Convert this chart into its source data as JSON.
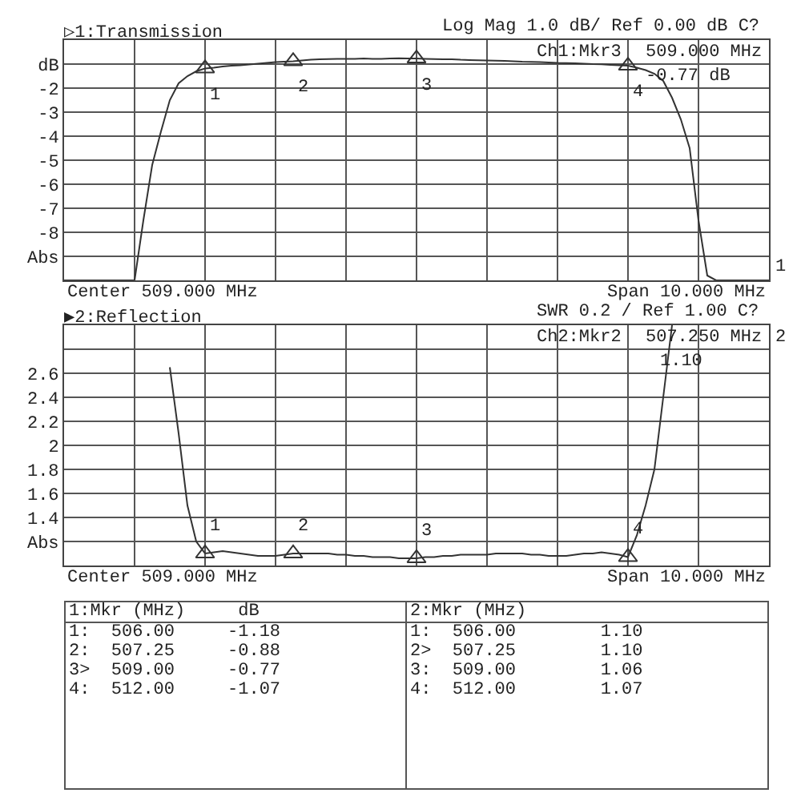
{
  "chart_data": [
    {
      "type": "line",
      "title": "▷1:Transmission",
      "subtitle": "Log Mag 1.0 dB/ Ref 0.00 dB C?",
      "categories": [
        null,
        null,
        null,
        null,
        null,
        null,
        null,
        null,
        null,
        null,
        null,
        null,
        null,
        null,
        null,
        null,
        null,
        null,
        null,
        null,
        null,
        null,
        null,
        null,
        null,
        null,
        null,
        null,
        null,
        null,
        null,
        null,
        null,
        null,
        null,
        null,
        null,
        null,
        null,
        null,
        null,
        null,
        null,
        null,
        null,
        null,
        null,
        null,
        null,
        null,
        null,
        null,
        null,
        null,
        null,
        null,
        null,
        null,
        null,
        null,
        null,
        null,
        null,
        null,
        null,
        null,
        null,
        null,
        null,
        null,
        null,
        null,
        null,
        null,
        null,
        null,
        null,
        null,
        null,
        null,
        null
      ],
      "series": [
        {
          "color": "#333333",
          "values": [
            -10,
            -10,
            -10,
            -10,
            -10,
            -10,
            -10,
            -10,
            -10,
            -7.5,
            -5.2,
            -3.8,
            -2.5,
            -1.8,
            -1.5,
            -1.3,
            -1.18,
            -1.15,
            -1.1,
            -1.07,
            -1.05,
            -1.02,
            -0.98,
            -0.95,
            -0.92,
            -0.9,
            -0.88,
            -0.85,
            -0.82,
            -0.8,
            -0.79,
            -0.78,
            -0.78,
            -0.78,
            -0.77,
            -0.78,
            -0.78,
            -0.77,
            -0.76,
            -0.77,
            -0.77,
            -0.78,
            -0.79,
            -0.8,
            -0.8,
            -0.82,
            -0.83,
            -0.84,
            -0.85,
            -0.86,
            -0.87,
            -0.88,
            -0.9,
            -0.91,
            -0.92,
            -0.93,
            -0.95,
            -0.96,
            -0.97,
            -0.98,
            -1.0,
            -1.01,
            -1.03,
            -1.05,
            -1.07,
            -1.15,
            -1.25,
            -1.4,
            -1.7,
            -2.4,
            -3.3,
            -4.5,
            -7.5,
            -9.8,
            -10,
            -10,
            -10,
            -10,
            -10,
            -10,
            -10
          ]
        },
        {
          "type": "scatter",
          "marker": "triangle",
          "color": "#333333",
          "values": [
            null,
            null,
            null,
            null,
            null,
            null,
            null,
            null,
            null,
            null,
            null,
            null,
            null,
            null,
            null,
            null,
            -1.18,
            null,
            null,
            null,
            null,
            null,
            null,
            null,
            null,
            null,
            -0.88,
            null,
            null,
            null,
            null,
            null,
            null,
            null,
            null,
            null,
            null,
            null,
            null,
            null,
            -0.77,
            null,
            null,
            null,
            null,
            null,
            null,
            null,
            null,
            null,
            null,
            null,
            null,
            null,
            null,
            null,
            null,
            null,
            null,
            null,
            null,
            null,
            null,
            null,
            -1.07,
            null,
            null,
            null,
            null,
            null,
            null,
            null,
            null,
            null,
            null,
            null,
            null,
            null,
            null,
            null,
            null
          ]
        }
      ],
      "ylim": [
        -10,
        0
      ],
      "yticks": [
        {
          "value": -10,
          "label": null
        },
        {
          "value": -9,
          "label": "Abs"
        },
        -8,
        -7,
        -6,
        -5,
        -4,
        -3,
        -2,
        {
          "value": -1,
          "label": "dB"
        },
        {
          "value": 0,
          "label": null
        }
      ],
      "grid": true,
      "marker": "none",
      "line_style": "solid",
      "annotations": [
        "Ch1:Mkr3",
        "509.000 MHz",
        "-0.77 dB",
        "Center 509.000 MHz",
        "Span 10.000 MHz",
        "1",
        "1",
        "2",
        "3",
        "4",
        "1:Mkr (MHz)     dB",
        "1:  506.00     -1.18",
        "2:  507.25     -0.88",
        "3>  509.00     -0.77",
        "4:  512.00     -1.07"
      ]
    },
    {
      "type": "line",
      "title": "▶2:Reflection",
      "subtitle": "SWR 0.2 / Ref 1.00 C?",
      "categories": [
        null,
        null,
        null,
        null,
        null,
        null,
        null,
        null,
        null,
        null,
        null,
        null,
        null,
        null,
        null,
        null,
        null,
        null,
        null,
        null,
        null,
        null,
        null,
        null,
        null,
        null,
        null,
        null,
        null,
        null,
        null,
        null,
        null,
        null,
        null,
        null,
        null,
        null,
        null,
        null,
        null,
        null,
        null,
        null,
        null,
        null,
        null,
        null,
        null,
        null,
        null,
        null,
        null,
        null,
        null,
        null,
        null,
        null,
        null,
        null,
        null,
        null,
        null,
        null,
        null,
        null,
        null,
        null,
        null,
        null,
        null,
        null,
        null,
        null,
        null,
        null,
        null,
        null,
        null,
        null,
        null
      ],
      "series": [
        {
          "color": "#333333",
          "values": [
            null,
            null,
            null,
            null,
            null,
            null,
            null,
            null,
            null,
            null,
            null,
            null,
            2.65,
            2.1,
            1.5,
            1.2,
            1.1,
            1.11,
            1.12,
            1.11,
            1.1,
            1.09,
            1.08,
            1.08,
            1.08,
            1.09,
            1.1,
            1.1,
            1.1,
            1.1,
            1.1,
            1.09,
            1.09,
            1.08,
            1.08,
            1.07,
            1.07,
            1.07,
            1.06,
            1.06,
            1.06,
            1.07,
            1.07,
            1.08,
            1.08,
            1.09,
            1.09,
            1.09,
            1.09,
            1.1,
            1.1,
            1.1,
            1.1,
            1.09,
            1.09,
            1.08,
            1.08,
            1.08,
            1.09,
            1.1,
            1.1,
            1.11,
            1.1,
            1.09,
            1.07,
            1.25,
            1.5,
            1.8,
            2.4,
            3.0,
            null,
            null,
            null,
            null,
            null,
            null,
            null,
            null,
            null,
            null,
            null
          ]
        },
        {
          "type": "scatter",
          "marker": "triangle",
          "color": "#333333",
          "values": [
            null,
            null,
            null,
            null,
            null,
            null,
            null,
            null,
            null,
            null,
            null,
            null,
            null,
            null,
            null,
            null,
            1.1,
            null,
            null,
            null,
            null,
            null,
            null,
            null,
            null,
            null,
            1.1,
            null,
            null,
            null,
            null,
            null,
            null,
            null,
            null,
            null,
            null,
            null,
            null,
            null,
            1.06,
            null,
            null,
            null,
            null,
            null,
            null,
            null,
            null,
            null,
            null,
            null,
            null,
            null,
            null,
            null,
            null,
            null,
            null,
            null,
            null,
            null,
            null,
            null,
            1.07,
            null,
            null,
            null,
            null,
            null,
            null,
            null,
            null,
            null,
            null,
            null,
            null,
            null,
            null,
            null,
            null
          ]
        }
      ],
      "ylim": [
        1.0,
        3.0
      ],
      "yticks": [
        {
          "value": 1.0,
          "label": null
        },
        {
          "value": 1.2,
          "label": "Abs"
        },
        1.4,
        1.6,
        1.8,
        2,
        2.2,
        2.4,
        2.6,
        {
          "value": 2.8,
          "label": null
        },
        {
          "value": 3.0,
          "label": null
        }
      ],
      "grid": true,
      "marker": "none",
      "line_style": "solid",
      "annotations": [
        "Ch2:Mkr2",
        "507.250 MHz",
        "1.10",
        "Center 509.000 MHz",
        "Span 10.000 MHz",
        "2",
        "1",
        "2",
        "3",
        "4",
        "2:Mkr (MHz)",
        "1:  506.00        1.10",
        "2>  507.25        1.10",
        "3:  509.00        1.06",
        "4:  512.00        1.07"
      ]
    }
  ]
}
